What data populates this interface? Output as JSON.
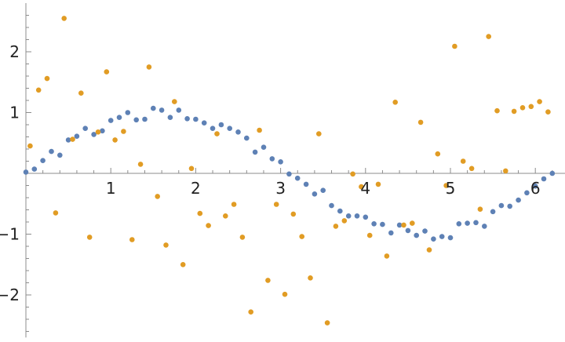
{
  "chart_data": {
    "type": "scatter",
    "title": "",
    "xlabel": "",
    "ylabel": "",
    "xlim": [
      0,
      6.35
    ],
    "ylim": [
      -2.7,
      2.8
    ],
    "grid": false,
    "legend": "none",
    "x_ticks": [
      {
        "value": 1,
        "label": "1"
      },
      {
        "value": 2,
        "label": "2"
      },
      {
        "value": 3,
        "label": "3"
      },
      {
        "value": 4,
        "label": "4"
      },
      {
        "value": 5,
        "label": "5"
      },
      {
        "value": 6,
        "label": "6"
      }
    ],
    "y_ticks": [
      {
        "value": -2,
        "label": "−2"
      },
      {
        "value": -1,
        "label": "−1"
      },
      {
        "value": 1,
        "label": "1"
      },
      {
        "value": 2,
        "label": "2"
      }
    ],
    "series": [
      {
        "color": "#5e81b5",
        "points": [
          [
            0.0,
            0.02
          ],
          [
            0.1,
            0.07
          ],
          [
            0.2,
            0.21
          ],
          [
            0.3,
            0.36
          ],
          [
            0.4,
            0.3
          ],
          [
            0.5,
            0.55
          ],
          [
            0.6,
            0.61
          ],
          [
            0.7,
            0.74
          ],
          [
            0.8,
            0.64
          ],
          [
            0.9,
            0.7
          ],
          [
            1.0,
            0.87
          ],
          [
            1.1,
            0.92
          ],
          [
            1.2,
            1.0
          ],
          [
            1.3,
            0.88
          ],
          [
            1.4,
            0.89
          ],
          [
            1.5,
            1.07
          ],
          [
            1.6,
            1.04
          ],
          [
            1.7,
            0.92
          ],
          [
            1.8,
            1.04
          ],
          [
            1.9,
            0.9
          ],
          [
            2.0,
            0.89
          ],
          [
            2.1,
            0.83
          ],
          [
            2.2,
            0.74
          ],
          [
            2.3,
            0.8
          ],
          [
            2.4,
            0.74
          ],
          [
            2.5,
            0.68
          ],
          [
            2.6,
            0.58
          ],
          [
            2.7,
            0.35
          ],
          [
            2.8,
            0.43
          ],
          [
            2.9,
            0.24
          ],
          [
            3.0,
            0.19
          ],
          [
            3.1,
            -0.01
          ],
          [
            3.2,
            -0.08
          ],
          [
            3.3,
            -0.18
          ],
          [
            3.4,
            -0.34
          ],
          [
            3.5,
            -0.28
          ],
          [
            3.6,
            -0.53
          ],
          [
            3.7,
            -0.62
          ],
          [
            3.8,
            -0.7
          ],
          [
            3.9,
            -0.7
          ],
          [
            4.0,
            -0.72
          ],
          [
            4.1,
            -0.83
          ],
          [
            4.2,
            -0.84
          ],
          [
            4.3,
            -0.98
          ],
          [
            4.4,
            -0.85
          ],
          [
            4.5,
            -0.94
          ],
          [
            4.6,
            -1.02
          ],
          [
            4.7,
            -0.95
          ],
          [
            4.8,
            -1.08
          ],
          [
            4.9,
            -1.04
          ],
          [
            5.0,
            -1.06
          ],
          [
            5.1,
            -0.83
          ],
          [
            5.2,
            -0.82
          ],
          [
            5.3,
            -0.81
          ],
          [
            5.4,
            -0.87
          ],
          [
            5.5,
            -0.63
          ],
          [
            5.6,
            -0.53
          ],
          [
            5.7,
            -0.54
          ],
          [
            5.8,
            -0.44
          ],
          [
            5.9,
            -0.32
          ],
          [
            6.0,
            -0.21
          ],
          [
            6.1,
            -0.09
          ],
          [
            6.2,
            0.0
          ]
        ]
      },
      {
        "color": "#e19c24",
        "points": [
          [
            0.05,
            0.45
          ],
          [
            0.15,
            1.37
          ],
          [
            0.25,
            1.56
          ],
          [
            0.35,
            -0.65
          ],
          [
            0.45,
            2.55
          ],
          [
            0.55,
            0.56
          ],
          [
            0.65,
            1.32
          ],
          [
            0.75,
            -1.05
          ],
          [
            0.85,
            0.68
          ],
          [
            0.95,
            1.67
          ],
          [
            1.05,
            0.55
          ],
          [
            1.15,
            0.69
          ],
          [
            1.25,
            -1.09
          ],
          [
            1.35,
            0.15
          ],
          [
            1.45,
            1.75
          ],
          [
            1.55,
            -0.38
          ],
          [
            1.65,
            -1.18
          ],
          [
            1.75,
            1.18
          ],
          [
            1.85,
            -1.5
          ],
          [
            1.95,
            0.08
          ],
          [
            2.05,
            -0.66
          ],
          [
            2.15,
            -0.86
          ],
          [
            2.25,
            0.65
          ],
          [
            2.35,
            -0.7
          ],
          [
            2.45,
            -0.51
          ],
          [
            2.55,
            -1.05
          ],
          [
            2.65,
            -2.28
          ],
          [
            2.75,
            0.71
          ],
          [
            2.85,
            -1.76
          ],
          [
            2.95,
            -0.51
          ],
          [
            3.05,
            -1.99
          ],
          [
            3.15,
            -0.67
          ],
          [
            3.25,
            -1.04
          ],
          [
            3.35,
            -1.72
          ],
          [
            3.45,
            0.65
          ],
          [
            3.55,
            -2.46
          ],
          [
            3.65,
            -0.87
          ],
          [
            3.75,
            -0.78
          ],
          [
            3.85,
            -0.01
          ],
          [
            3.95,
            -0.22
          ],
          [
            4.05,
            -1.02
          ],
          [
            4.15,
            -0.18
          ],
          [
            4.25,
            -1.36
          ],
          [
            4.35,
            1.17
          ],
          [
            4.45,
            -0.85
          ],
          [
            4.55,
            -0.82
          ],
          [
            4.65,
            0.84
          ],
          [
            4.75,
            -1.26
          ],
          [
            4.85,
            0.32
          ],
          [
            4.95,
            -0.2
          ],
          [
            5.05,
            2.09
          ],
          [
            5.15,
            0.2
          ],
          [
            5.25,
            0.08
          ],
          [
            5.35,
            -0.59
          ],
          [
            5.45,
            2.25
          ],
          [
            5.55,
            1.03
          ],
          [
            5.65,
            0.04
          ],
          [
            5.75,
            1.02
          ],
          [
            5.85,
            1.08
          ],
          [
            5.95,
            1.1
          ],
          [
            6.05,
            1.18
          ],
          [
            6.15,
            1.01
          ]
        ]
      }
    ]
  }
}
